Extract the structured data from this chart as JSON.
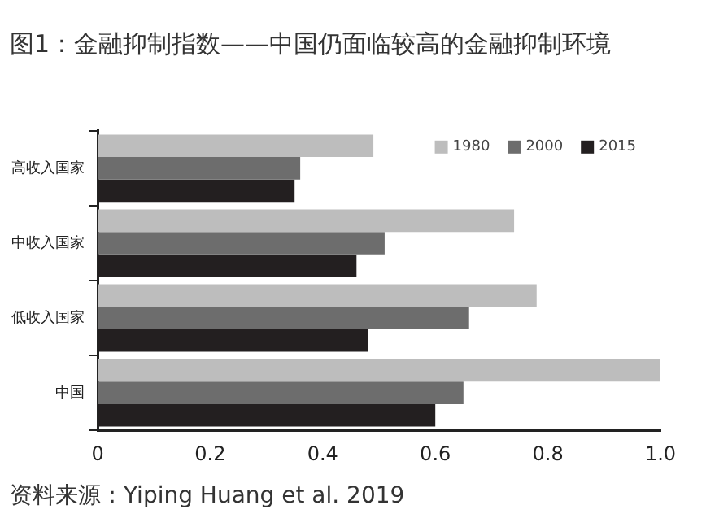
{
  "chart_data": {
    "type": "bar",
    "orientation": "horizontal",
    "title": "图1：金融抑制指数——中国仍面临较高的金融抑制环境",
    "categories": [
      "高收入国家",
      "中收入国家",
      "低收入国家",
      "中国"
    ],
    "series": [
      {
        "name": "1980",
        "color": "#bdbdbd",
        "values": [
          0.49,
          0.74,
          0.78,
          1.0
        ]
      },
      {
        "name": "2000",
        "color": "#6d6d6d",
        "values": [
          0.36,
          0.51,
          0.66,
          0.65
        ]
      },
      {
        "name": "2015",
        "color": "#231f20",
        "values": [
          0.35,
          0.46,
          0.48,
          0.6
        ]
      }
    ],
    "xlim": [
      0,
      1
    ],
    "xticks": [
      0,
      0.2,
      0.4,
      0.6,
      0.8,
      {
        "value": 1,
        "label": "1.0"
      }
    ],
    "grid": false,
    "legend": "top right",
    "annotations": [
      "资料来源：Yiping Huang et al. 2019"
    ]
  }
}
